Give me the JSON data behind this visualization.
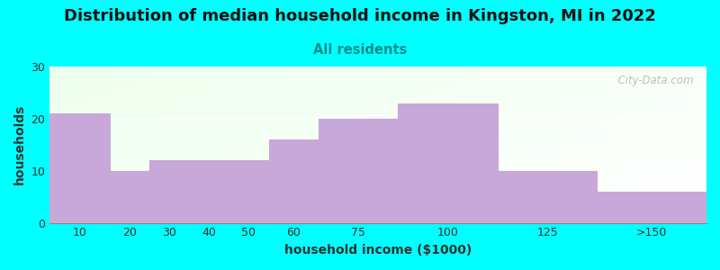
{
  "title": "Distribution of median household income in Kingston, MI in 2022",
  "subtitle": "All residents",
  "xlabel": "household income ($1000)",
  "ylabel": "households",
  "background_color": "#00FFFF",
  "bar_labels": [
    "10",
    "20",
    "30",
    "40",
    "50",
    "60",
    "75",
    "100",
    "125",
    ">150"
  ],
  "bar_values": [
    21,
    10,
    12,
    12,
    12,
    16,
    20,
    23,
    10,
    6
  ],
  "bin_edges": [
    0,
    15,
    25,
    35,
    45,
    55,
    67.5,
    87.5,
    112.5,
    137.5,
    165
  ],
  "bar_color": "#C8A8D8",
  "bar_edgecolor": "#FFFFFF",
  "bar_linewidth": 0.8,
  "ylim": [
    0,
    30
  ],
  "yticks": [
    0,
    10,
    20,
    30
  ],
  "watermark": "  City-Data.com",
  "title_fontsize": 13,
  "subtitle_fontsize": 10.5,
  "subtitle_color": "#008B8B",
  "axis_label_fontsize": 10,
  "tick_fontsize": 9
}
